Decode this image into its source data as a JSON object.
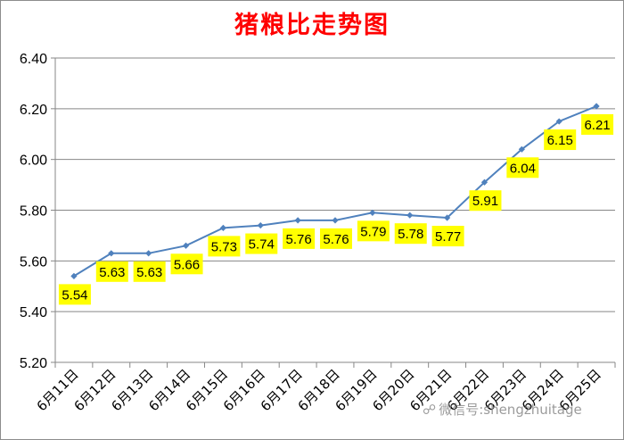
{
  "chart_data": {
    "type": "line",
    "title": "猪粮比走势图",
    "categories": [
      "6月11日",
      "6月12日",
      "6月13日",
      "6月14日",
      "6月15日",
      "6月16日",
      "6月17日",
      "6月18日",
      "6月19日",
      "6月20日",
      "6月21日",
      "6月22日",
      "6月23日",
      "6月24日",
      "6月25日"
    ],
    "series": [
      {
        "values": [
          5.54,
          5.63,
          5.63,
          5.66,
          5.73,
          5.74,
          5.76,
          5.76,
          5.79,
          5.78,
          5.77,
          5.91,
          6.04,
          6.15,
          6.21
        ]
      }
    ],
    "data_labels": [
      "5.54",
      "5.63",
      "5.63",
      "5.66",
      "5.73",
      "5.74",
      "5.76",
      "5.76",
      "5.79",
      "5.78",
      "5.77",
      "5.91",
      "6.04",
      "6.15",
      "6.21"
    ],
    "yticks": [
      "5.20",
      "5.40",
      "5.60",
      "5.80",
      "6.00",
      "6.20",
      "6.40"
    ],
    "ylim": [
      5.2,
      6.4
    ],
    "grid": true,
    "line_color": "#4f81bd",
    "label_bg_color": "#ffff00",
    "title_color": "#ff0000"
  },
  "watermark": {
    "text": "微信号:shengzhuitage",
    "icon": "wechat-icon"
  }
}
